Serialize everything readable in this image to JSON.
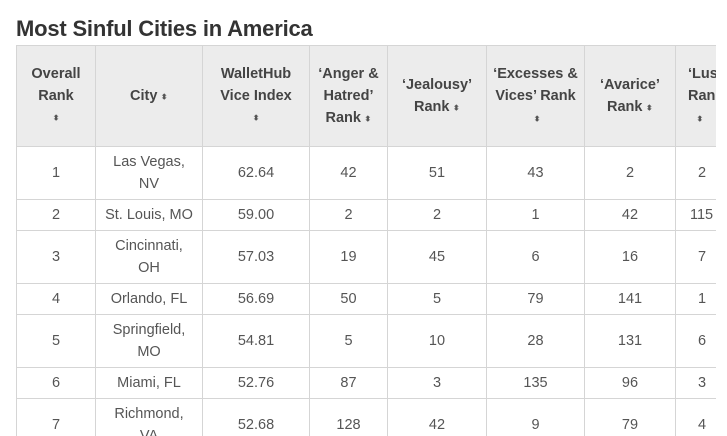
{
  "title": "Most Sinful Cities in America",
  "sort_glyph": "⬍",
  "columns": [
    {
      "label": "Overall Rank"
    },
    {
      "label": "City"
    },
    {
      "label": "WalletHub Vice Index"
    },
    {
      "label": "‘Anger & Hatred’ Rank"
    },
    {
      "label": "‘Jealousy’ Rank"
    },
    {
      "label": "‘Excesses & Vices’ Rank"
    },
    {
      "label": "‘Avarice’ Rank"
    },
    {
      "label": "‘Lus Ran"
    }
  ],
  "rows": [
    {
      "rank": "1",
      "city": "Las Vegas, NV",
      "index": "62.64",
      "anger": "42",
      "jealousy": "51",
      "excesses": "43",
      "avarice": "2",
      "lust": "2"
    },
    {
      "rank": "2",
      "city": "St. Louis, MO",
      "index": "59.00",
      "anger": "2",
      "jealousy": "2",
      "excesses": "1",
      "avarice": "42",
      "lust": "115"
    },
    {
      "rank": "3",
      "city": "Cincinnati, OH",
      "index": "57.03",
      "anger": "19",
      "jealousy": "45",
      "excesses": "6",
      "avarice": "16",
      "lust": "7"
    },
    {
      "rank": "4",
      "city": "Orlando, FL",
      "index": "56.69",
      "anger": "50",
      "jealousy": "5",
      "excesses": "79",
      "avarice": "141",
      "lust": "1"
    },
    {
      "rank": "5",
      "city": "Springfield, MO",
      "index": "54.81",
      "anger": "5",
      "jealousy": "10",
      "excesses": "28",
      "avarice": "131",
      "lust": "6"
    },
    {
      "rank": "6",
      "city": "Miami, FL",
      "index": "52.76",
      "anger": "87",
      "jealousy": "3",
      "excesses": "135",
      "avarice": "96",
      "lust": "3"
    },
    {
      "rank": "7",
      "city": "Richmond, VA",
      "index": "52.68",
      "anger": "128",
      "jealousy": "42",
      "excesses": "9",
      "avarice": "79",
      "lust": "4"
    }
  ]
}
